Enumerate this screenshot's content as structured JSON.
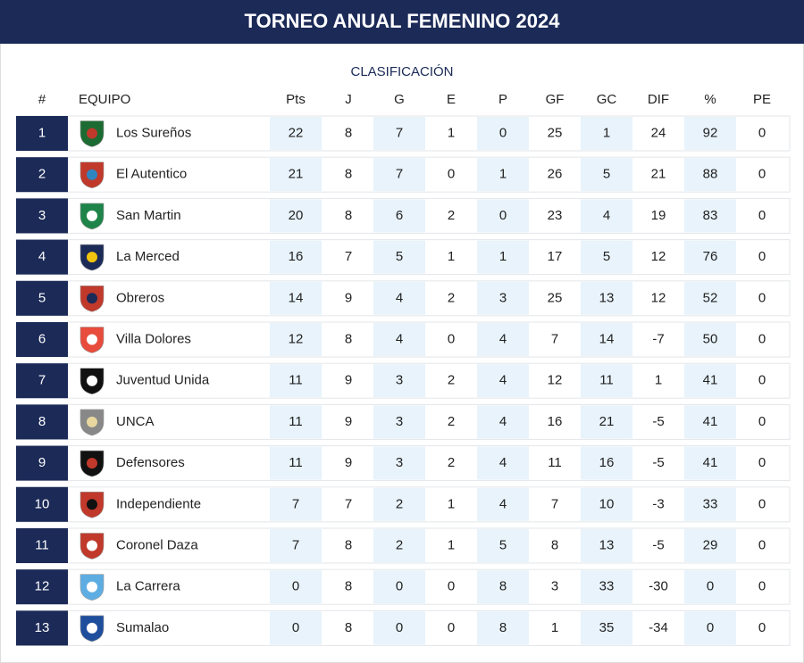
{
  "header": {
    "title": "TORNEO ANUAL FEMENINO 2024"
  },
  "table": {
    "subtitle": "CLASIFICACIÓN",
    "columns": [
      "#",
      "EQUIPO",
      "Pts",
      "J",
      "G",
      "E",
      "P",
      "GF",
      "GC",
      "DIF",
      "%",
      "PE"
    ],
    "rows": [
      [
        1,
        "Los Sureños",
        22,
        8,
        7,
        1,
        0,
        25,
        1,
        24,
        92,
        0
      ],
      [
        2,
        "El Autentico",
        21,
        8,
        7,
        0,
        1,
        26,
        5,
        21,
        88,
        0
      ],
      [
        3,
        "San Martin",
        20,
        8,
        6,
        2,
        0,
        23,
        4,
        19,
        83,
        0
      ],
      [
        4,
        "La Merced",
        16,
        7,
        5,
        1,
        1,
        17,
        5,
        12,
        76,
        0
      ],
      [
        5,
        "Obreros",
        14,
        9,
        4,
        2,
        3,
        25,
        13,
        12,
        52,
        0
      ],
      [
        6,
        "Villa Dolores",
        12,
        8,
        4,
        0,
        4,
        7,
        14,
        -7,
        50,
        0
      ],
      [
        7,
        "Juventud Unida",
        11,
        9,
        3,
        2,
        4,
        12,
        11,
        1,
        41,
        0
      ],
      [
        8,
        "UNCA",
        11,
        9,
        3,
        2,
        4,
        16,
        21,
        -5,
        41,
        0
      ],
      [
        9,
        "Defensores",
        11,
        9,
        3,
        2,
        4,
        11,
        16,
        -5,
        41,
        0
      ],
      [
        10,
        "Independiente",
        7,
        7,
        2,
        1,
        4,
        7,
        10,
        -3,
        33,
        0
      ],
      [
        11,
        "Coronel Daza",
        7,
        8,
        2,
        1,
        5,
        8,
        13,
        -5,
        29,
        0
      ],
      [
        12,
        "La Carrera",
        0,
        8,
        0,
        0,
        8,
        3,
        33,
        -30,
        0,
        0
      ],
      [
        13,
        "Sumalao",
        0,
        8,
        0,
        0,
        8,
        1,
        35,
        -34,
        0,
        0
      ]
    ]
  }
}
